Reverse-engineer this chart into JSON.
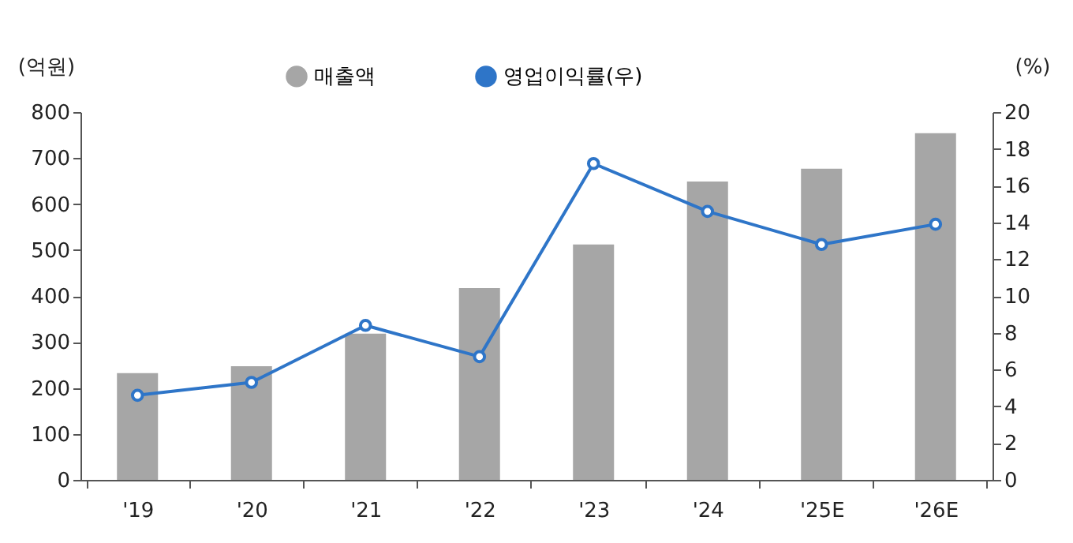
{
  "chart_data": {
    "type": "bar",
    "ylabel": "(억원)",
    "y2label": "(%)",
    "categories": [
      "'19",
      "'20",
      "'21",
      "'22",
      "'23",
      "'24",
      "'25E",
      "'26E"
    ],
    "series": [
      {
        "name": "매출액",
        "color": "#a6a6a6",
        "values": [
          232,
          247,
          318,
          417,
          512,
          649,
          677,
          754
        ]
      },
      {
        "name": "영업이익률(우)",
        "type": "line",
        "axis": "y2",
        "color": "#2e75c8",
        "values": [
          4.6,
          5.3,
          8.4,
          6.7,
          17.2,
          14.6,
          12.8,
          13.9
        ]
      }
    ],
    "ylim": [
      0,
      800
    ],
    "yticks": [
      0,
      100,
      200,
      300,
      400,
      500,
      600,
      700,
      800
    ],
    "y2lim": [
      0,
      20
    ],
    "y2ticks": [
      0,
      2,
      4,
      6,
      8,
      10,
      12,
      14,
      16,
      18,
      20
    ],
    "legend": "top",
    "grid": false,
    "marker": "circle",
    "line_style": "solid"
  }
}
